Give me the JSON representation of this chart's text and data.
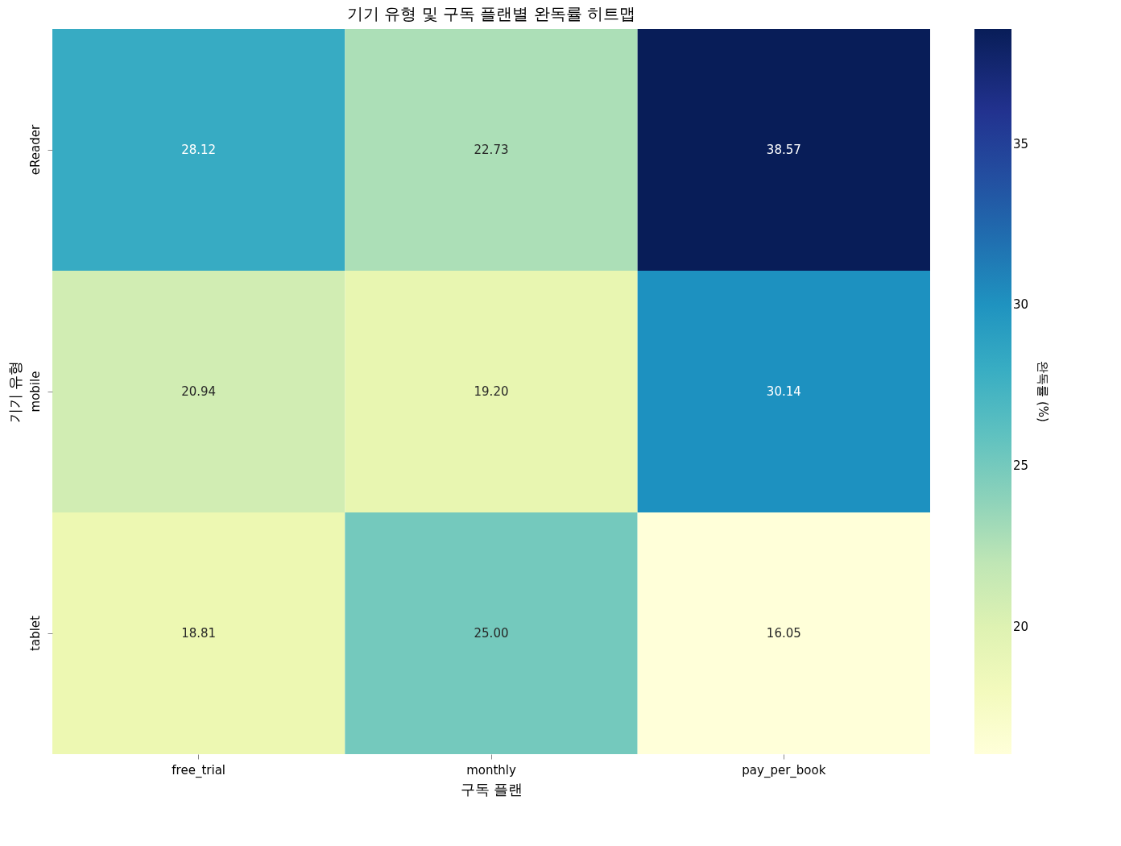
{
  "chart_data": {
    "type": "heatmap",
    "title": "기기 유형 및 구독 플랜별 완독률 히트맵",
    "xlabel": "구독 플랜",
    "ylabel": "기기 유형",
    "clabel": "완독률 (%)",
    "categories": [
      "free_trial",
      "monthly",
      "pay_per_book"
    ],
    "y_categories": [
      "eReader",
      "mobile",
      "tablet"
    ],
    "cells": [
      [
        28.12,
        22.73,
        38.57
      ],
      [
        20.94,
        19.2,
        30.14
      ],
      [
        18.81,
        25.0,
        16.05
      ]
    ],
    "cell_labels": [
      [
        "28.12",
        "22.73",
        "38.57"
      ],
      [
        "20.94",
        "19.20",
        "30.14"
      ],
      [
        "18.81",
        "25.00",
        "16.05"
      ]
    ],
    "clim": [
      16.05,
      38.57
    ],
    "cticks": [
      20,
      25,
      30,
      35
    ],
    "data_labels": true
  }
}
